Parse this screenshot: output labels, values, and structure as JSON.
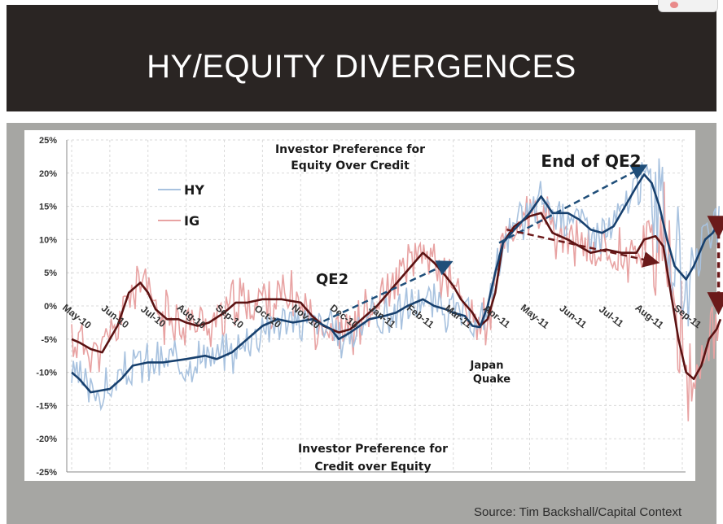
{
  "slide": {
    "title": "HY/EQUITY DIVERGENCES",
    "source": "Source: Tim Backshall/Capital Context"
  },
  "colors": {
    "hy_light": "#a8c2df",
    "hy_dark": "#17406e",
    "ig_light": "#e8a3a3",
    "ig_dark": "#5b1212",
    "arrow_blue": "#1f4e79",
    "arrow_red": "#6b1a1a",
    "grid": "#d9d9d9"
  },
  "chart_data": {
    "type": "line",
    "x_categories": [
      "May-10",
      "Jun-10",
      "Jul-10",
      "Aug-10",
      "Sep-10",
      "Oct-10",
      "Nov-10",
      "Dec-10",
      "Jan-11",
      "Feb-11",
      "Mar-11",
      "Apr-11",
      "May-11",
      "Jun-11",
      "Jul-11",
      "Aug-11",
      "Sep-11"
    ],
    "y_ticks": [
      "25%",
      "20%",
      "15%",
      "10%",
      "5%",
      "0%",
      "-5%",
      "-10%",
      "-15%",
      "-20%",
      "-25%"
    ],
    "ylim": [
      -25,
      25
    ],
    "legend": [
      {
        "label": "HY",
        "color": "#a8c2df"
      },
      {
        "label": "IG",
        "color": "#e8a3a3"
      }
    ],
    "series": [
      {
        "name": "HY",
        "points": [
          [
            0,
            -10
          ],
          [
            0.2,
            -11
          ],
          [
            0.5,
            -13
          ],
          [
            1,
            -12.5
          ],
          [
            1.3,
            -11
          ],
          [
            1.6,
            -9
          ],
          [
            2,
            -8.5
          ],
          [
            2.4,
            -8.5
          ],
          [
            3,
            -8
          ],
          [
            3.5,
            -7.5
          ],
          [
            3.8,
            -8
          ],
          [
            4.2,
            -7
          ],
          [
            4.6,
            -5
          ],
          [
            5,
            -3
          ],
          [
            5.4,
            -2
          ],
          [
            5.8,
            -2.5
          ],
          [
            6.3,
            -2
          ],
          [
            6.8,
            -3.5
          ],
          [
            7,
            -5
          ],
          [
            7.3,
            -4
          ],
          [
            7.8,
            -2
          ],
          [
            8.2,
            -1.5
          ],
          [
            8.5,
            -1
          ],
          [
            8.8,
            0
          ],
          [
            9.2,
            1
          ],
          [
            9.5,
            0
          ],
          [
            9.8,
            -0.5
          ],
          [
            10,
            -1
          ],
          [
            10.3,
            -1.5
          ],
          [
            10.5,
            -3
          ],
          [
            10.7,
            -3.2
          ],
          [
            10.9,
            0
          ],
          [
            11.1,
            5
          ],
          [
            11.3,
            9.5
          ],
          [
            11.6,
            11.5
          ],
          [
            12,
            14
          ],
          [
            12.3,
            16.5
          ],
          [
            12.6,
            14
          ],
          [
            13,
            14
          ],
          [
            13.3,
            13
          ],
          [
            13.6,
            11.5
          ],
          [
            13.9,
            11
          ],
          [
            14.2,
            12
          ],
          [
            14.5,
            15
          ],
          [
            14.8,
            18
          ],
          [
            15,
            19.8
          ],
          [
            15.2,
            18.5
          ],
          [
            15.4,
            15
          ],
          [
            15.6,
            10
          ],
          [
            15.8,
            6
          ],
          [
            16.1,
            4
          ],
          [
            16.3,
            6
          ],
          [
            16.6,
            10
          ],
          [
            16.8,
            11
          ],
          [
            17,
            13
          ]
        ]
      },
      {
        "name": "IG",
        "points": [
          [
            0,
            -5
          ],
          [
            0.2,
            -5.5
          ],
          [
            0.5,
            -6.5
          ],
          [
            0.8,
            -7
          ],
          [
            1,
            -5
          ],
          [
            1.2,
            -3
          ],
          [
            1.5,
            2
          ],
          [
            1.8,
            3.5
          ],
          [
            2,
            2
          ],
          [
            2.2,
            -0.5
          ],
          [
            2.5,
            -2
          ],
          [
            2.8,
            -2
          ],
          [
            3,
            -2.5
          ],
          [
            3.3,
            -3
          ],
          [
            3.6,
            -2.5
          ],
          [
            4,
            -1
          ],
          [
            4.3,
            0.5
          ],
          [
            4.6,
            0.5
          ],
          [
            5,
            1
          ],
          [
            5.5,
            1
          ],
          [
            6,
            0.5
          ],
          [
            6.3,
            -1.5
          ],
          [
            6.6,
            -3
          ],
          [
            7,
            -4
          ],
          [
            7.3,
            -3.5
          ],
          [
            7.6,
            -2
          ],
          [
            8,
            0
          ],
          [
            8.3,
            2
          ],
          [
            8.6,
            4
          ],
          [
            8.9,
            6
          ],
          [
            9.2,
            8
          ],
          [
            9.5,
            6.5
          ],
          [
            9.8,
            4.5
          ],
          [
            10,
            3
          ],
          [
            10.2,
            1
          ],
          [
            10.5,
            -1
          ],
          [
            10.7,
            -3
          ],
          [
            10.9,
            -2
          ],
          [
            11.1,
            2
          ],
          [
            11.3,
            9.5
          ],
          [
            11.6,
            12
          ],
          [
            12,
            13.5
          ],
          [
            12.3,
            14
          ],
          [
            12.6,
            11
          ],
          [
            13,
            10
          ],
          [
            13.3,
            9
          ],
          [
            13.6,
            8
          ],
          [
            14,
            8.5
          ],
          [
            14.4,
            8
          ],
          [
            14.8,
            8
          ],
          [
            15,
            10
          ],
          [
            15.3,
            10.5
          ],
          [
            15.5,
            9
          ],
          [
            15.7,
            2
          ],
          [
            15.9,
            -5
          ],
          [
            16.1,
            -10
          ],
          [
            16.3,
            -11
          ],
          [
            16.5,
            -9
          ],
          [
            16.7,
            -5
          ],
          [
            16.9,
            -3.5
          ],
          [
            17,
            -2
          ]
        ]
      }
    ],
    "annotations": [
      "Investor Preference for",
      "Equity Over Credit",
      "Investor Preference for",
      "Credit over Equity",
      "End of QE2",
      "QE2",
      "Japan",
      "Quake"
    ]
  }
}
